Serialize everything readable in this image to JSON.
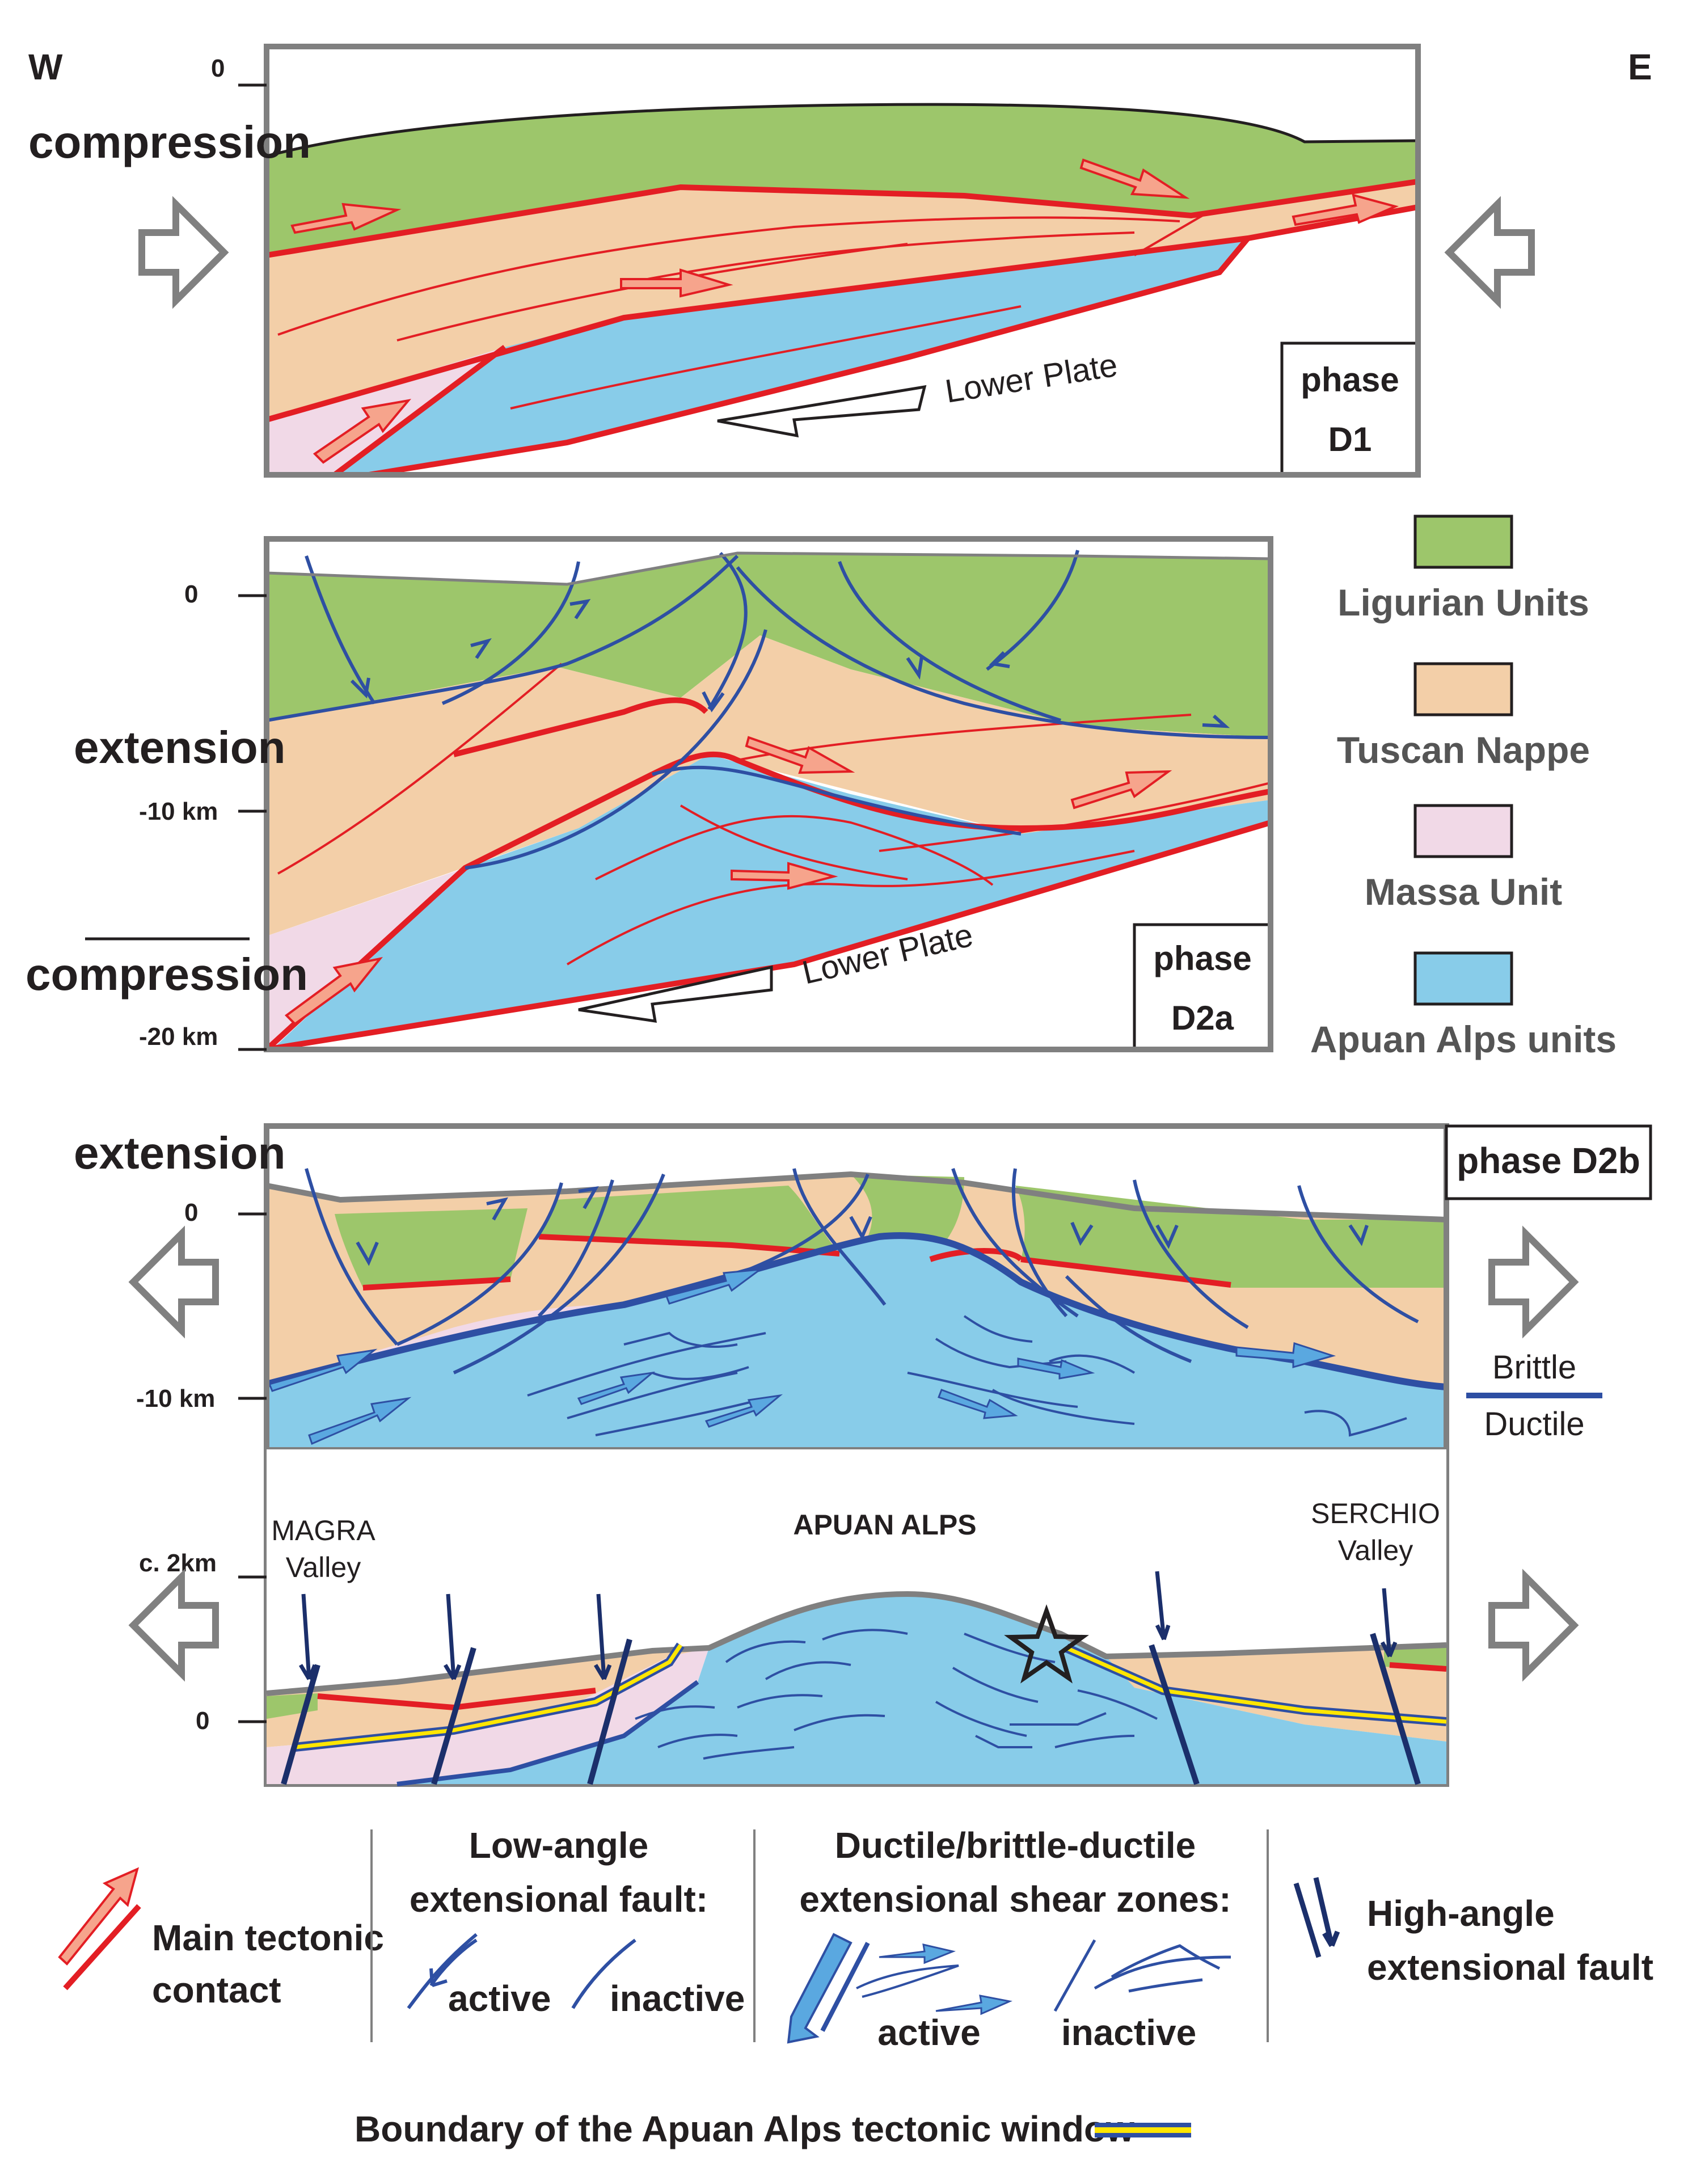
{
  "orientation": {
    "west": "W",
    "east": "E"
  },
  "colors": {
    "ligurian": "#9dc66b",
    "tuscan": "#f3cfa8",
    "massa": "#f1d9e7",
    "apuan": "#88cce9",
    "contact_red": "#e31e24",
    "fault_blue": "#2e4fa3",
    "high_angle": "#1b2f6b",
    "window_yellow": "#ffe600",
    "frame_grey": "#808080"
  },
  "panel_d1": {
    "regime": "compression",
    "depth_top": "0",
    "lower_plate": "Lower Plate",
    "phase_line1": "phase",
    "phase_line2": "D1"
  },
  "panel_d2a": {
    "depth_top": "0",
    "regime_upper": "extension",
    "depth_mid": "-10 km",
    "regime_lower": "compression",
    "depth_bottom": "-20 km",
    "lower_plate": "Lower Plate",
    "phase_line1": "phase",
    "phase_line2": "D2a"
  },
  "panel_d2b": {
    "regime": "extension",
    "phase": "phase D2b",
    "depth_top": "0",
    "depth_bottom": "-10 km",
    "brittle": "Brittle",
    "ductile": "Ductile"
  },
  "panel_today": {
    "title": "APUAN ALPS",
    "magra_line1": "MAGRA",
    "magra_line2": "Valley",
    "serchio_line1": "SERCHIO",
    "serchio_line2": "Valley",
    "elev_top": "c. 2km",
    "elev_bottom": "0"
  },
  "units_legend": [
    {
      "label": "Ligurian Units",
      "color": "#9dc66b"
    },
    {
      "label": "Tuscan Nappe",
      "color": "#f3cfa8"
    },
    {
      "label": "Massa Unit",
      "color": "#f1d9e7"
    },
    {
      "label": "Apuan Alps units",
      "color": "#88cce9"
    }
  ],
  "structures_legend": {
    "main_contact_line1": "Main tectonic",
    "main_contact_line2": "contact",
    "low_angle_line1": "Low-angle",
    "low_angle_line2": "extensional fault:",
    "active": "active",
    "inactive": "inactive",
    "ductile_line1": "Ductile/brittle-ductile",
    "ductile_line2": "extensional shear zones:",
    "ductile_active": "active",
    "ductile_inactive": "inactive",
    "high_angle_line1": "High-angle",
    "high_angle_line2": "extensional fault",
    "window_boundary": "Boundary of the Apuan Alps tectonic window"
  }
}
